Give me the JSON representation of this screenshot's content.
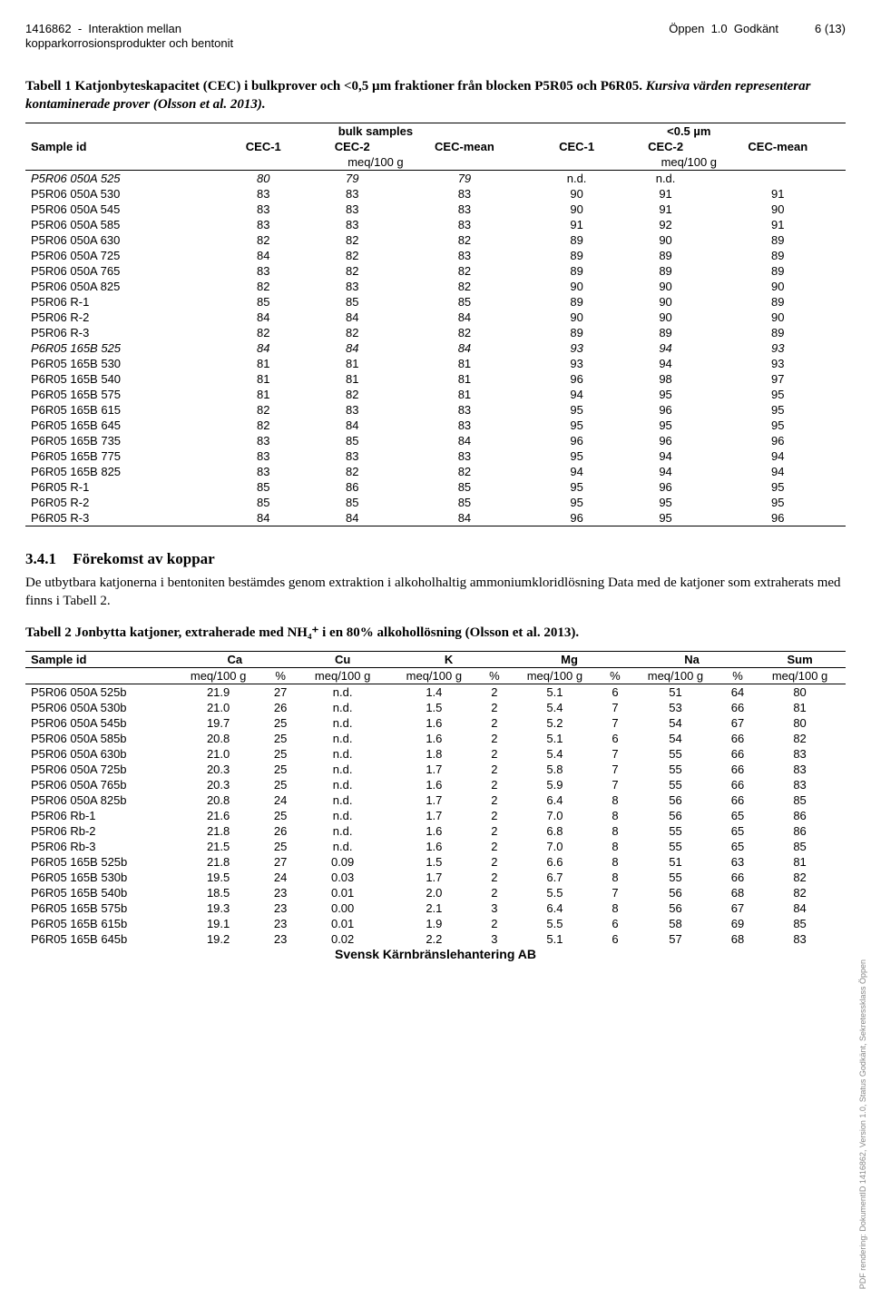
{
  "header": {
    "doc_id": "1416862",
    "title_line1": "Interaktion mellan",
    "title_line2": "kopparkorrosionsprodukter och bentonit",
    "classification": "Öppen",
    "version": "1.0",
    "status": "Godkänt",
    "page": "6 (13)"
  },
  "table1": {
    "caption_bold": "Tabell 1 Katjonbyteskapacitet (CEC) i bulkprover och <0,5 µm fraktioner från blocken P5R05 och P6R05.",
    "caption_rest": "Kursiva värden representerar kontaminerade prover (Olsson et al. 2013).",
    "group1": "bulk samples",
    "group2": "<0.5 µm",
    "unit": "meq/100 g",
    "cols": [
      "Sample id",
      "CEC-1",
      "CEC-2",
      "CEC-mean",
      "CEC-1",
      "CEC-2",
      "CEC-mean"
    ],
    "rows": [
      {
        "id": "P5R06 050A 525",
        "v": [
          "80",
          "79",
          "79",
          "n.d.",
          "n.d.",
          ""
        ],
        "italic": [
          1,
          1,
          1,
          0,
          0,
          0
        ]
      },
      {
        "id": "P5R06 050A 530",
        "v": [
          "83",
          "83",
          "83",
          "90",
          "91",
          "91"
        ]
      },
      {
        "id": "P5R06 050A 545",
        "v": [
          "83",
          "83",
          "83",
          "90",
          "91",
          "90"
        ]
      },
      {
        "id": "P5R06 050A 585",
        "v": [
          "83",
          "83",
          "83",
          "91",
          "92",
          "91"
        ]
      },
      {
        "id": "P5R06 050A 630",
        "v": [
          "82",
          "82",
          "82",
          "89",
          "90",
          "89"
        ]
      },
      {
        "id": "P5R06 050A 725",
        "v": [
          "84",
          "82",
          "83",
          "89",
          "89",
          "89"
        ]
      },
      {
        "id": "P5R06 050A 765",
        "v": [
          "83",
          "82",
          "82",
          "89",
          "89",
          "89"
        ]
      },
      {
        "id": "P5R06 050A 825",
        "v": [
          "82",
          "83",
          "82",
          "90",
          "90",
          "90"
        ]
      },
      {
        "id": "P5R06 R-1",
        "v": [
          "85",
          "85",
          "85",
          "89",
          "90",
          "89"
        ]
      },
      {
        "id": "P5R06 R-2",
        "v": [
          "84",
          "84",
          "84",
          "90",
          "90",
          "90"
        ]
      },
      {
        "id": "P5R06 R-3",
        "v": [
          "82",
          "82",
          "82",
          "89",
          "89",
          "89"
        ]
      },
      {
        "id": "P6R05 165B 525",
        "v": [
          "84",
          "84",
          "84",
          "93",
          "94",
          "93"
        ],
        "italic": [
          1,
          1,
          1,
          1,
          1,
          1
        ]
      },
      {
        "id": "P6R05 165B 530",
        "v": [
          "81",
          "81",
          "81",
          "93",
          "94",
          "93"
        ]
      },
      {
        "id": "P6R05 165B 540",
        "v": [
          "81",
          "81",
          "81",
          "96",
          "98",
          "97"
        ]
      },
      {
        "id": "P6R05 165B 575",
        "v": [
          "81",
          "82",
          "81",
          "94",
          "95",
          "95"
        ]
      },
      {
        "id": "P6R05 165B 615",
        "v": [
          "82",
          "83",
          "83",
          "95",
          "96",
          "95"
        ]
      },
      {
        "id": "P6R05 165B 645",
        "v": [
          "82",
          "84",
          "83",
          "95",
          "95",
          "95"
        ]
      },
      {
        "id": "P6R05 165B 735",
        "v": [
          "83",
          "85",
          "84",
          "96",
          "96",
          "96"
        ]
      },
      {
        "id": "P6R05 165B 775",
        "v": [
          "83",
          "83",
          "83",
          "95",
          "94",
          "94"
        ]
      },
      {
        "id": "P6R05 165B 825",
        "v": [
          "83",
          "82",
          "82",
          "94",
          "94",
          "94"
        ]
      },
      {
        "id": "P6R05 R-1",
        "v": [
          "85",
          "86",
          "85",
          "95",
          "96",
          "95"
        ]
      },
      {
        "id": "P6R05 R-2",
        "v": [
          "85",
          "85",
          "85",
          "95",
          "95",
          "95"
        ]
      },
      {
        "id": "P6R05 R-3",
        "v": [
          "84",
          "84",
          "84",
          "96",
          "95",
          "96"
        ]
      }
    ]
  },
  "section": {
    "num": "3.4.1",
    "title": "Förekomst av koppar",
    "para": "De utbytbara katjonerna i bentoniten bestämdes genom extraktion i alkoholhaltig ammoniumkloridlösning Data med de katjoner som extraherats med finns i Tabell 2."
  },
  "table2": {
    "caption": "Tabell 2 Jonbytta katjoner, extraherade med NH₄⁺ i en 80% alkohollösning (Olsson et al. 2013).",
    "cols_top": [
      "Sample id",
      "Ca",
      "Cu",
      "K",
      "Mg",
      "Na",
      "Sum"
    ],
    "unit_meq": "meq/100 g",
    "unit_pct": "%",
    "rows": [
      {
        "id": "P5R06 050A 525b",
        "v": [
          "21.9",
          "27",
          "n.d.",
          "1.4",
          "2",
          "5.1",
          "6",
          "51",
          "64",
          "80"
        ]
      },
      {
        "id": "P5R06 050A 530b",
        "v": [
          "21.0",
          "26",
          "n.d.",
          "1.5",
          "2",
          "5.4",
          "7",
          "53",
          "66",
          "81"
        ]
      },
      {
        "id": "P5R06 050A 545b",
        "v": [
          "19.7",
          "25",
          "n.d.",
          "1.6",
          "2",
          "5.2",
          "7",
          "54",
          "67",
          "80"
        ]
      },
      {
        "id": "P5R06 050A 585b",
        "v": [
          "20.8",
          "25",
          "n.d.",
          "1.6",
          "2",
          "5.1",
          "6",
          "54",
          "66",
          "82"
        ]
      },
      {
        "id": "P5R06 050A 630b",
        "v": [
          "21.0",
          "25",
          "n.d.",
          "1.8",
          "2",
          "5.4",
          "7",
          "55",
          "66",
          "83"
        ]
      },
      {
        "id": "P5R06 050A 725b",
        "v": [
          "20.3",
          "25",
          "n.d.",
          "1.7",
          "2",
          "5.8",
          "7",
          "55",
          "66",
          "83"
        ]
      },
      {
        "id": "P5R06 050A 765b",
        "v": [
          "20.3",
          "25",
          "n.d.",
          "1.6",
          "2",
          "5.9",
          "7",
          "55",
          "66",
          "83"
        ]
      },
      {
        "id": "P5R06 050A 825b",
        "v": [
          "20.8",
          "24",
          "n.d.",
          "1.7",
          "2",
          "6.4",
          "8",
          "56",
          "66",
          "85"
        ]
      },
      {
        "id": "P5R06 Rb-1",
        "v": [
          "21.6",
          "25",
          "n.d.",
          "1.7",
          "2",
          "7.0",
          "8",
          "56",
          "65",
          "86"
        ]
      },
      {
        "id": "P5R06 Rb-2",
        "v": [
          "21.8",
          "26",
          "n.d.",
          "1.6",
          "2",
          "6.8",
          "8",
          "55",
          "65",
          "86"
        ]
      },
      {
        "id": "P5R06 Rb-3",
        "v": [
          "21.5",
          "25",
          "n.d.",
          "1.6",
          "2",
          "7.0",
          "8",
          "55",
          "65",
          "85"
        ]
      },
      {
        "id": "P6R05 165B 525b",
        "v": [
          "21.8",
          "27",
          "0.09",
          "1.5",
          "2",
          "6.6",
          "8",
          "51",
          "63",
          "81"
        ]
      },
      {
        "id": "P6R05 165B 530b",
        "v": [
          "19.5",
          "24",
          "0.03",
          "1.7",
          "2",
          "6.7",
          "8",
          "55",
          "66",
          "82"
        ]
      },
      {
        "id": "P6R05 165B 540b",
        "v": [
          "18.5",
          "23",
          "0.01",
          "2.0",
          "2",
          "5.5",
          "7",
          "56",
          "68",
          "82"
        ]
      },
      {
        "id": "P6R05 165B 575b",
        "v": [
          "19.3",
          "23",
          "0.00",
          "2.1",
          "3",
          "6.4",
          "8",
          "56",
          "67",
          "84"
        ]
      },
      {
        "id": "P6R05 165B 615b",
        "v": [
          "19.1",
          "23",
          "0.01",
          "1.9",
          "2",
          "5.5",
          "6",
          "58",
          "69",
          "85"
        ]
      },
      {
        "id": "P6R05 165B 645b",
        "v": [
          "19.2",
          "23",
          "0.02",
          "2.2",
          "3",
          "5.1",
          "6",
          "57",
          "68",
          "83"
        ]
      }
    ]
  },
  "footer": "Svensk Kärnbränslehantering AB",
  "sidenote": "PDF rendering: DokumentID 1416862, Version 1.0, Status Godkänt, Sekretessklass Öppen"
}
